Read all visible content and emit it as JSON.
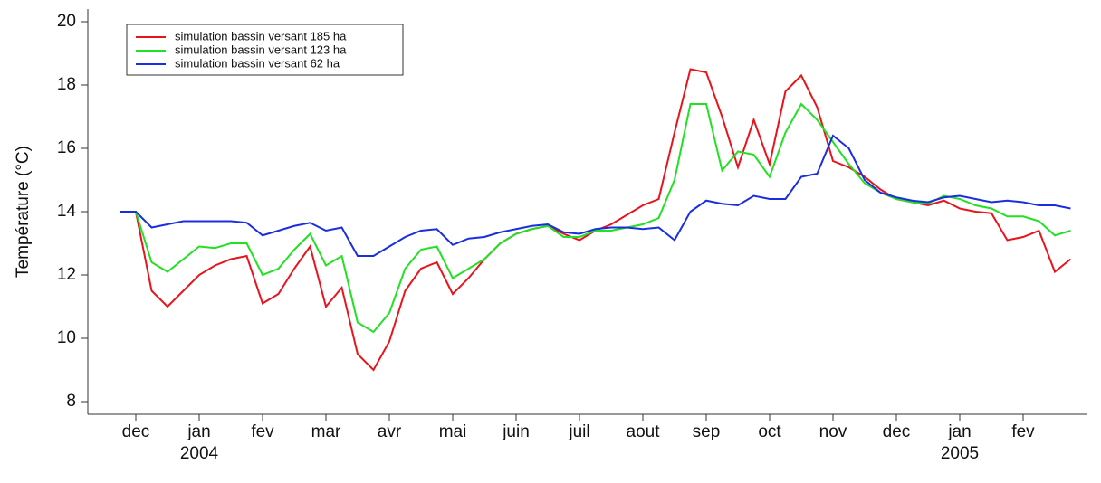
{
  "chart_data": {
    "type": "line",
    "ylabel": "Température (°C)",
    "categories": [
      null,
      "dec",
      null,
      null,
      null,
      "jan\n2004",
      null,
      null,
      null,
      "fev",
      null,
      null,
      null,
      "mar",
      null,
      null,
      null,
      "avr",
      null,
      null,
      null,
      "mai",
      null,
      null,
      null,
      "juin",
      null,
      null,
      null,
      "juil",
      null,
      null,
      null,
      "aout",
      null,
      null,
      null,
      "sep",
      null,
      null,
      null,
      "oct",
      null,
      null,
      null,
      "nov",
      null,
      null,
      null,
      "dec",
      null,
      null,
      null,
      "jan\n2005",
      null,
      null,
      null,
      "fev",
      null,
      null,
      null
    ],
    "series": [
      {
        "name": "simulation bassin versant 185 ha",
        "color": "#e8141c",
        "values": [
          14.0,
          14.0,
          11.5,
          11.0,
          11.5,
          12.0,
          12.3,
          12.5,
          12.6,
          11.1,
          11.4,
          12.2,
          12.9,
          11.0,
          11.6,
          9.5,
          9.0,
          9.9,
          11.5,
          12.2,
          12.4,
          11.4,
          11.9,
          12.5,
          13.0,
          13.3,
          13.45,
          13.55,
          13.3,
          13.1,
          13.4,
          13.6,
          13.9,
          14.2,
          14.4,
          16.5,
          18.5,
          18.4,
          17.0,
          15.4,
          16.9,
          15.5,
          17.8,
          18.3,
          17.3,
          15.6,
          15.4,
          15.1,
          14.7,
          14.4,
          14.3,
          14.2,
          14.35,
          14.1,
          14.0,
          13.95,
          13.1,
          13.2,
          13.4,
          12.1,
          12.5
        ]
      },
      {
        "name": "simulation bassin versant 123 ha",
        "color": "#22e022",
        "values": [
          14.0,
          14.0,
          12.4,
          12.1,
          12.5,
          12.9,
          12.85,
          13.0,
          13.0,
          12.0,
          12.2,
          12.8,
          13.3,
          12.3,
          12.6,
          10.5,
          10.2,
          10.8,
          12.2,
          12.8,
          12.9,
          11.9,
          12.2,
          12.5,
          13.0,
          13.3,
          13.45,
          13.55,
          13.2,
          13.2,
          13.4,
          13.4,
          13.5,
          13.6,
          13.8,
          15.0,
          17.4,
          17.4,
          15.3,
          15.9,
          15.8,
          15.1,
          16.5,
          17.4,
          16.9,
          16.2,
          15.5,
          14.9,
          14.6,
          14.4,
          14.3,
          14.25,
          14.5,
          14.4,
          14.2,
          14.1,
          13.85,
          13.85,
          13.7,
          13.25,
          13.4
        ]
      },
      {
        "name": "simulation bassin versant 62 ha",
        "color": "#1a2ee0",
        "values": [
          14.0,
          14.0,
          13.5,
          13.6,
          13.7,
          13.7,
          13.7,
          13.7,
          13.65,
          13.25,
          13.4,
          13.55,
          13.65,
          13.4,
          13.5,
          12.6,
          12.6,
          12.9,
          13.2,
          13.4,
          13.45,
          12.95,
          13.15,
          13.2,
          13.35,
          13.45,
          13.55,
          13.6,
          13.35,
          13.3,
          13.45,
          13.5,
          13.5,
          13.45,
          13.5,
          13.1,
          14.0,
          14.35,
          14.25,
          14.2,
          14.5,
          14.4,
          14.4,
          15.1,
          15.2,
          16.4,
          16.0,
          15.0,
          14.6,
          14.45,
          14.35,
          14.3,
          14.45,
          14.5,
          14.4,
          14.3,
          14.35,
          14.3,
          14.2,
          14.2,
          14.1
        ]
      }
    ],
    "ylim": [
      7.6,
      20.4
    ],
    "yticks": [
      8,
      10,
      12,
      14,
      16,
      18,
      20
    ],
    "legend": "upper-left",
    "grid": false
  }
}
